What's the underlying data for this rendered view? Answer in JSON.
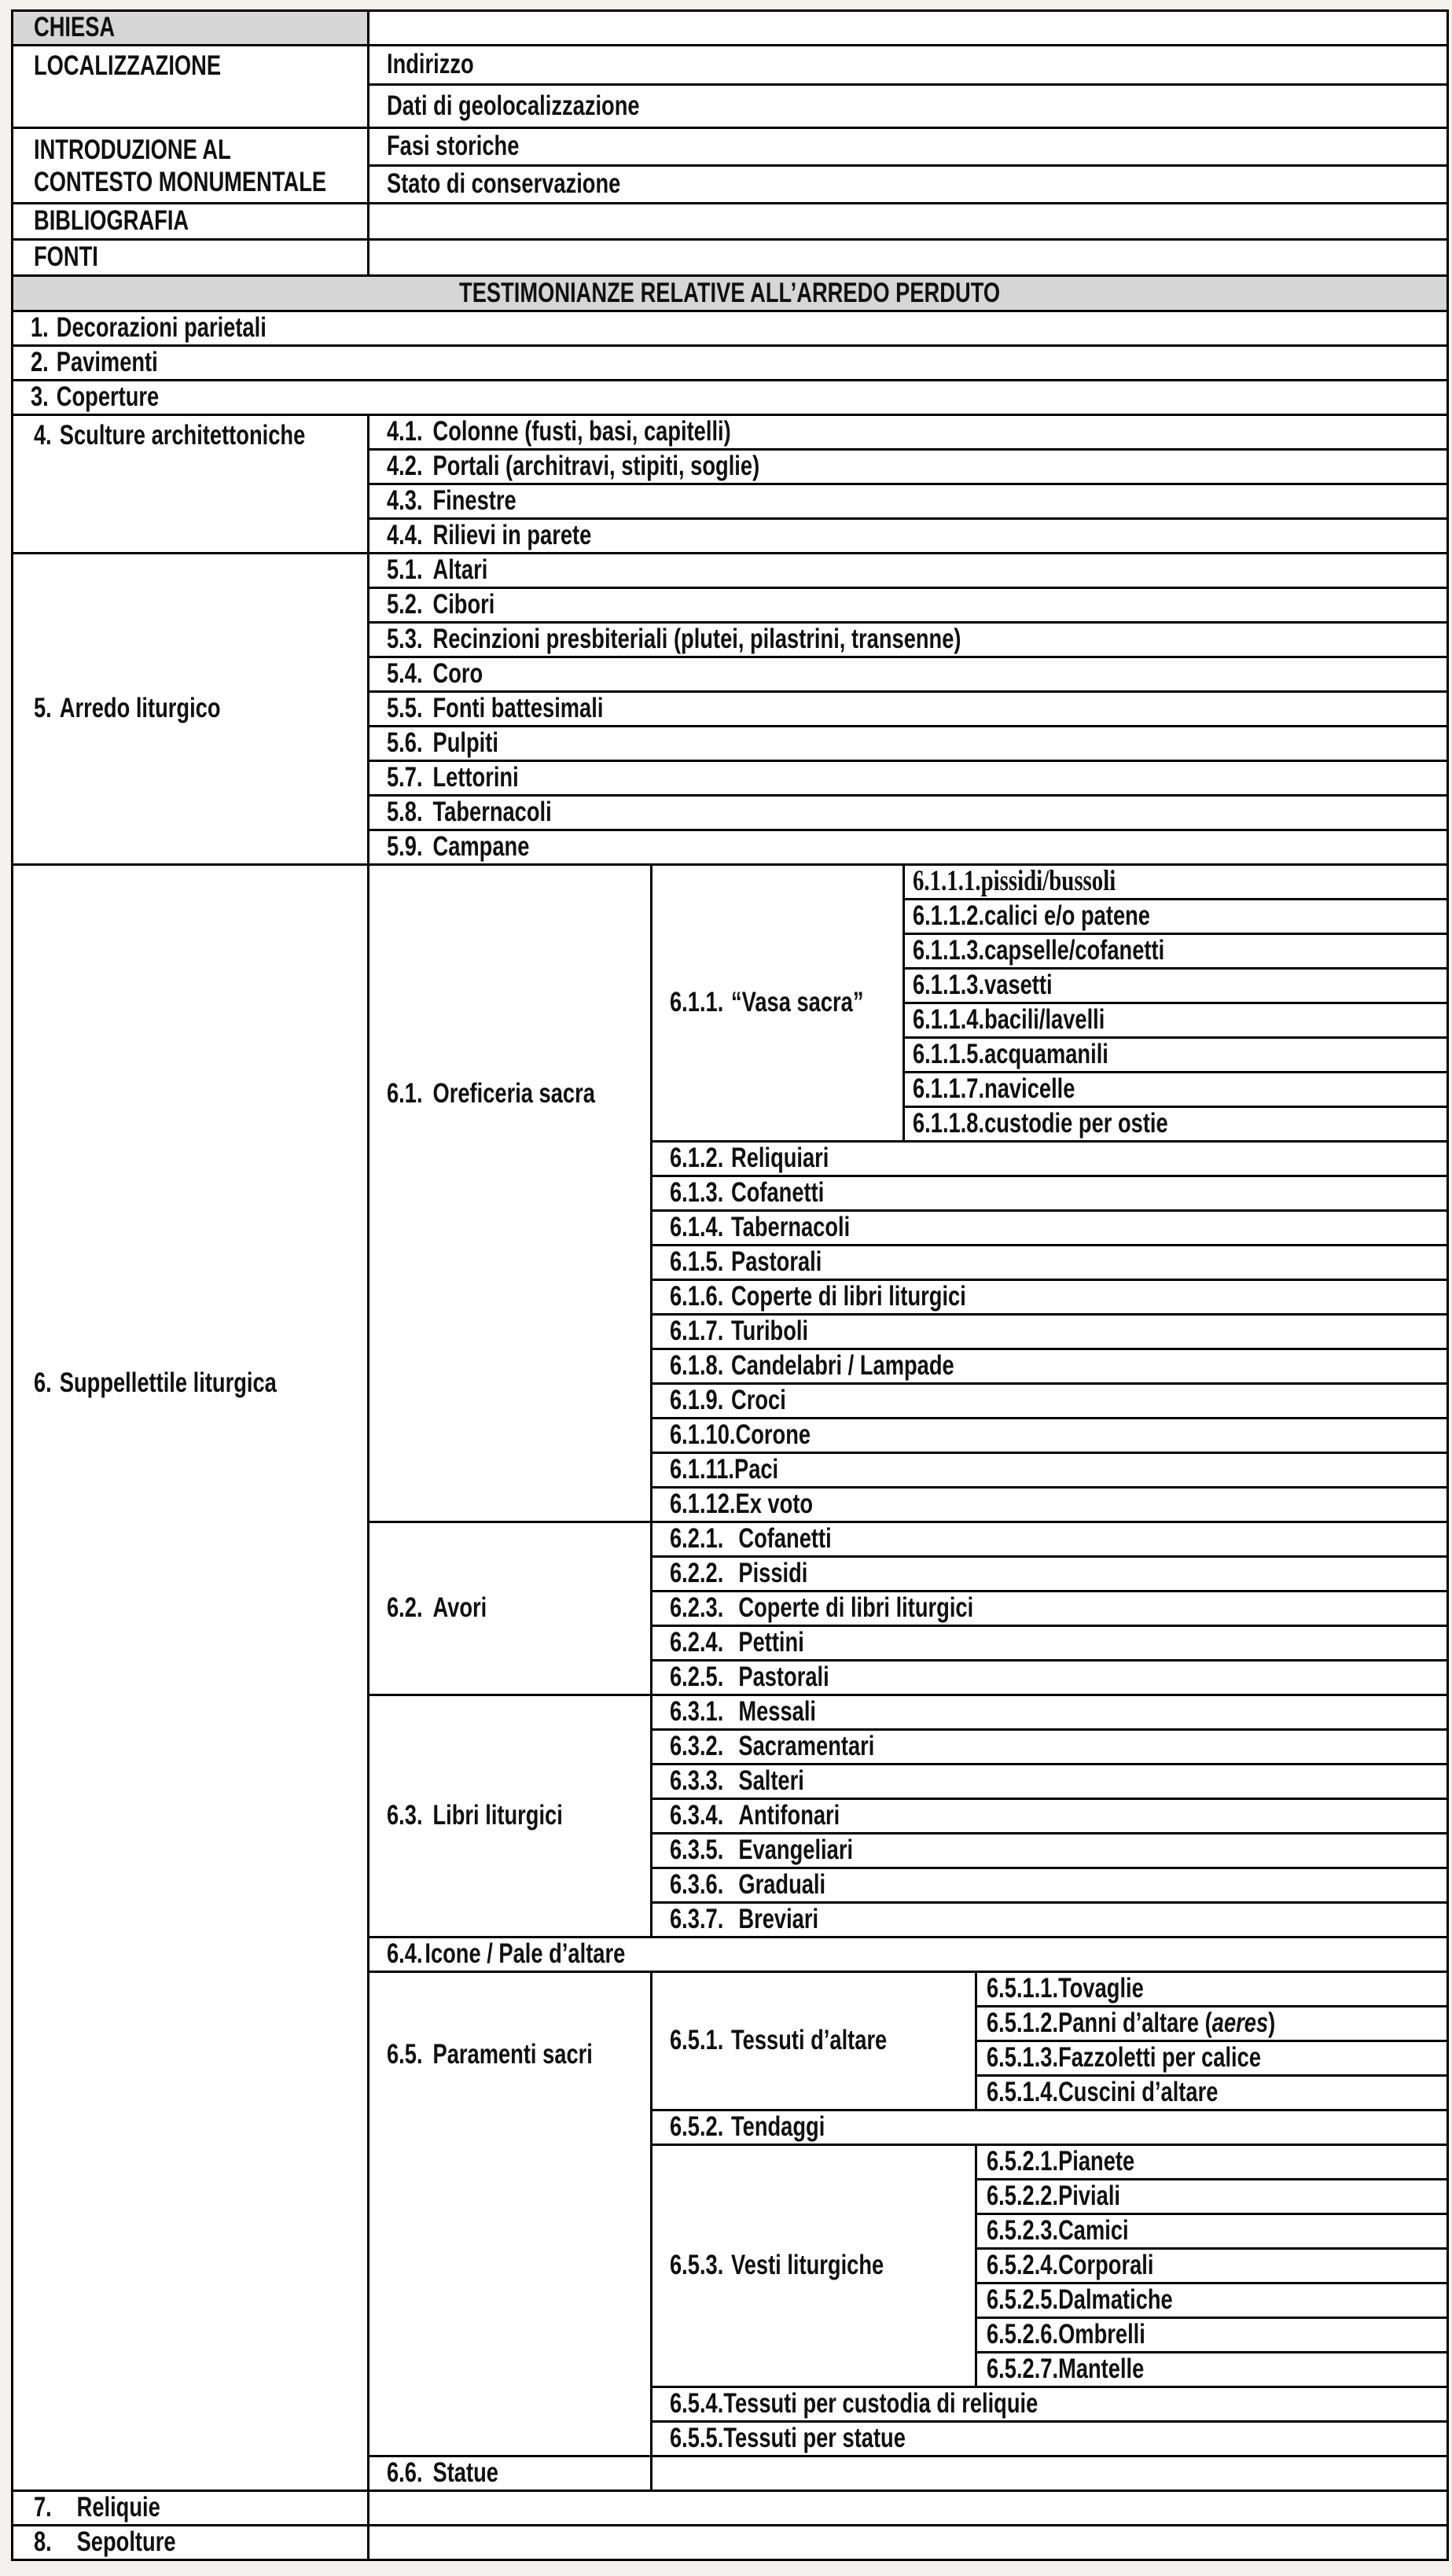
{
  "colors": {
    "page_bg": "#f2f1ee",
    "table_border": "#000000",
    "header_fill": "#d6d6d6",
    "cell_fill": "#ffffff",
    "text": "#101010"
  },
  "top": {
    "chiesa": "CHIESA",
    "localizzazione": "LOCALIZZAZIONE",
    "indirizzo": "Indirizzo",
    "geo": "Dati di geolocalizzazione",
    "introduzione": "INTRODUZIONE AL CONTESTO MONUMENTALE",
    "fasi": "Fasi storiche",
    "stato": "Stato di conservazione",
    "bibliografia": "BIBLIOGRAFIA",
    "fonti": "FONTI"
  },
  "banner": "TESTIMONIANZE RELATIVE ALL’ARREDO PERDUTO",
  "rows123": [
    {
      "num": "1.",
      "label": "Decorazioni parietali"
    },
    {
      "num": "2.",
      "label": "Pavimenti"
    },
    {
      "num": "3.",
      "label": "Coperture"
    }
  ],
  "s4": {
    "num": "4.",
    "label": "Sculture architettoniche",
    "items": [
      {
        "num": "4.1.",
        "label": "Colonne (fusti, basi, capitelli)"
      },
      {
        "num": "4.2.",
        "label": "Portali (architravi, stipiti, soglie)"
      },
      {
        "num": "4.3.",
        "label": "Finestre"
      },
      {
        "num": "4.4.",
        "label": "Rilievi in parete"
      }
    ]
  },
  "s5": {
    "num": "5.",
    "label": "Arredo liturgico",
    "items": [
      {
        "num": "5.1.",
        "label": "Altari"
      },
      {
        "num": "5.2.",
        "label": "Cibori"
      },
      {
        "num": "5.3.",
        "label": "Recinzioni presbiteriali (plutei, pilastrini, transenne)"
      },
      {
        "num": "5.4.",
        "label": "Coro"
      },
      {
        "num": "5.5.",
        "label": "Fonti battesimali"
      },
      {
        "num": "5.6.",
        "label": "Pulpiti"
      },
      {
        "num": "5.7.",
        "label": "Lettorini"
      },
      {
        "num": "5.8.",
        "label": "Tabernacoli"
      },
      {
        "num": "5.9.",
        "label": "Campane"
      }
    ]
  },
  "s6": {
    "num": "6.",
    "label": "Suppellettile liturgica",
    "s61": {
      "num": "6.1.",
      "label": "Oreficeria sacra",
      "vasa": {
        "num": "6.1.1.",
        "label": "“Vasa sacra”",
        "items": [
          {
            "num": "6.1.1.1.",
            "label": "pissidi/bussoli"
          },
          {
            "num": "6.1.1.2.",
            "label": "calici e/o patene"
          },
          {
            "num": "6.1.1.3.",
            "label": "capselle/cofanetti"
          },
          {
            "num": "6.1.1.3.",
            "label": "vasetti"
          },
          {
            "num": "6.1.1.4.",
            "label": "bacili/lavelli"
          },
          {
            "num": "6.1.1.5.",
            "label": "acquamanili"
          },
          {
            "num": "6.1.1.7.",
            "label": "navicelle"
          },
          {
            "num": "6.1.1.8.",
            "label": "custodie per ostie"
          }
        ]
      },
      "items": [
        {
          "num": "6.1.2.",
          "label": "Reliquiari"
        },
        {
          "num": "6.1.3.",
          "label": "Cofanetti"
        },
        {
          "num": "6.1.4.",
          "label": "Tabernacoli"
        },
        {
          "num": "6.1.5.",
          "label": "Pastorali"
        },
        {
          "num": "6.1.6.",
          "label": "Coperte di libri liturgici"
        },
        {
          "num": "6.1.7.",
          "label": "Turiboli"
        },
        {
          "num": "6.1.8.",
          "label": "Candelabri / Lampade"
        },
        {
          "num": "6.1.9.",
          "label": "Croci"
        },
        {
          "num": "6.1.10.",
          "label": "Corone"
        },
        {
          "num": "6.1.11.",
          "label": "Paci"
        },
        {
          "num": "6.1.12.",
          "label": "Ex voto"
        }
      ]
    },
    "s62": {
      "num": "6.2.",
      "label": "Avori",
      "items": [
        {
          "num": "6.2.1.",
          "label": "Cofanetti"
        },
        {
          "num": "6.2.2.",
          "label": "Pissidi"
        },
        {
          "num": "6.2.3.",
          "label": "Coperte di libri liturgici"
        },
        {
          "num": "6.2.4.",
          "label": "Pettini"
        },
        {
          "num": "6.2.5.",
          "label": "Pastorali"
        }
      ]
    },
    "s63": {
      "num": "6.3.",
      "label": "Libri liturgici",
      "items": [
        {
          "num": "6.3.1.",
          "label": "Messali"
        },
        {
          "num": "6.3.2.",
          "label": "Sacramentari"
        },
        {
          "num": "6.3.3.",
          "label": "Salteri"
        },
        {
          "num": "6.3.4.",
          "label": "Antifonari"
        },
        {
          "num": "6.3.5.",
          "label": "Evangeliari"
        },
        {
          "num": "6.3.6.",
          "label": "Graduali"
        },
        {
          "num": "6.3.7.",
          "label": "Breviari"
        }
      ]
    },
    "s64": {
      "num": "6.4.",
      "label": "Icone / Pale d’altare"
    },
    "s65": {
      "num": "6.5.",
      "label": "Paramenti sacri",
      "s651": {
        "num": "6.5.1.",
        "label": "Tessuti d’altare",
        "items": [
          {
            "num": "6.5.1.1.",
            "label": "Tovaglie"
          },
          {
            "num": "6.5.1.2.",
            "pre": "Panni d’altare (",
            "italic": "aeres",
            "post": ")"
          },
          {
            "num": "6.5.1.3.",
            "label": "Fazzoletti per calice"
          },
          {
            "num": "6.5.1.4.",
            "label": "Cuscini d’altare"
          }
        ]
      },
      "s652": {
        "num": "6.5.2.",
        "label": "Tendaggi"
      },
      "s653": {
        "num": "6.5.3.",
        "label": "Vesti liturgiche",
        "items": [
          {
            "num": "6.5.2.1.",
            "label": "Pianete"
          },
          {
            "num": "6.5.2.2.",
            "label": "Piviali"
          },
          {
            "num": "6.5.2.3.",
            "label": "Camici"
          },
          {
            "num": "6.5.2.4.",
            "label": "Corporali"
          },
          {
            "num": "6.5.2.5.",
            "label": "Dalmatiche"
          },
          {
            "num": "6.5.2.6.",
            "label": "Ombrelli"
          },
          {
            "num": "6.5.2.7.",
            "label": "Mantelle"
          }
        ]
      },
      "s654": {
        "num": "6.5.4.",
        "label": "Tessuti per custodia di reliquie"
      },
      "s655": {
        "num": "6.5.5.",
        "label": "Tessuti per statue"
      }
    },
    "s66": {
      "num": "6.6.",
      "label": "Statue"
    }
  },
  "s7": {
    "num": "7.",
    "label": "Reliquie"
  },
  "s8": {
    "num": "8.",
    "label": "Sepolture"
  }
}
